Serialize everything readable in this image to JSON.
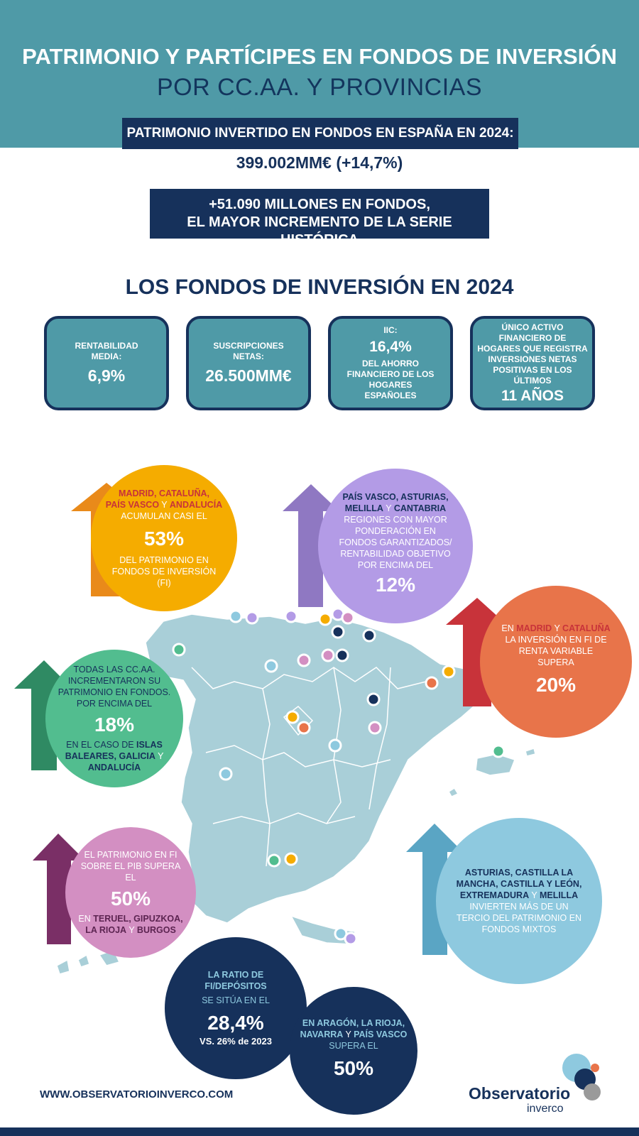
{
  "header": {
    "title": "PATRIMONIO Y PARTÍCIPES EN FONDOS DE INVERSIÓN",
    "subtitle": "POR CC.AA. Y PROVINCIAS"
  },
  "headline": {
    "label": "PATRIMONIO INVERTIDO EN FONDOS EN ESPAÑA EN 2024:",
    "value": "399.002MM€ (+14,7%)",
    "increase_line1": "+51.090 MILLONES EN FONDOS,",
    "increase_line2": "EL MAYOR INCREMENTO DE LA SERIE HISTÓRICA"
  },
  "section_title": "LOS FONDOS DE INVERSIÓN EN 2024",
  "cards": [
    {
      "label": "RENTABILIDAD MEDIA:",
      "value": "6,9%"
    },
    {
      "label": "SUSCRIPCIONES NETAS:",
      "value": "26.500MM€"
    },
    {
      "label": "IIC:",
      "value": "16,4%",
      "note": "DEL AHORRO FINANCIERO DE LOS HOGARES ESPAÑOLES"
    },
    {
      "label": "ÚNICO ACTIVO FINANCIERO DE HOGARES QUE REGISTRA INVERSIONES NETAS POSITIVAS EN LOS ÚLTIMOS",
      "value": "11 AÑOS"
    }
  ],
  "bubbles": {
    "orange": {
      "r1": "MADRID, CATALUÑA,",
      "r2a": "PAÍS VASCO",
      "y": " Y ",
      "r2b": "ANDALUCÍA",
      "t1": "ACUMULAN CASI EL",
      "pct": "53%",
      "t2": "DEL PATRIMONIO EN FONDOS DE INVERSIÓN (FI)"
    },
    "purple": {
      "r1": "PAÍS VASCO, ASTURIAS,",
      "r2a": "MELILLA",
      "y": " Y ",
      "r2b": "CANTABRIA",
      "t1": "REGIONES CON MAYOR PONDERACIÓN EN FONDOS GARANTIZADOS/ RENTABILIDAD OBJETIVO POR ENCIMA DEL",
      "pct": "12%"
    },
    "red": {
      "en": "EN ",
      "a": "MADRID",
      "y": " Y ",
      "b": "CATALUÑA",
      "t1": "LA INVERSIÓN EN FI DE RENTA VARIABLE SUPERA",
      "pct": "20%"
    },
    "green": {
      "t1": "TODAS LAS CC.AA. INCREMENTARON SU PATRIMONIO EN FONDOS. POR ENCIMA DEL",
      "pct": "18%",
      "en": "EN EL CASO DE ",
      "a": "ISLAS BALEARES, GALICIA",
      "y": " Y ",
      "b": "ANDALUCÍA"
    },
    "pink": {
      "t1": "EL PATRIMONIO EN FI SOBRE EL PIB SUPERA EL",
      "pct": "50%",
      "en": "EN ",
      "a": "TERUEL, GIPUZKOA, LA RIOJA",
      "y": " Y ",
      "b": "BURGOS"
    },
    "lightblue": {
      "a": "ASTURIAS, CASTILLA LA MANCHA,  CASTILLA Y LEÓN, EXTREMADURA",
      "y": " Y ",
      "b": "MELILLA",
      "t1": "INVIERTEN MÁS DE UN TERCIO DEL PATRIMONIO EN FONDOS MIXTOS"
    },
    "navy1": {
      "a": "LA RATIO DE FI/DEPÓSITOS",
      "t1": "SE SITÚA EN EL",
      "pct": "28,4%",
      "t2": "VS. 26% de 2023"
    },
    "navy2": {
      "a": "EN ARAGÓN, LA RIOJA, NAVARRA",
      "y": " Y ",
      "b": "PAÍS VASCO",
      "t1": "SUPERA EL",
      "pct": "50%"
    }
  },
  "colors": {
    "teal": "#4f9aa7",
    "navy": "#16315b",
    "orange": "#f5ac00",
    "purple": "#b39be6",
    "red": "#e8744a",
    "green": "#52bd8f",
    "pink": "#d38fc2",
    "lightblue": "#8ec9df",
    "map": "#a9cfd8"
  },
  "footer": {
    "url": "WWW.OBSERVATORIOINVERCO.COM",
    "logo_title": "Observatorio",
    "logo_sub": "inverco"
  }
}
